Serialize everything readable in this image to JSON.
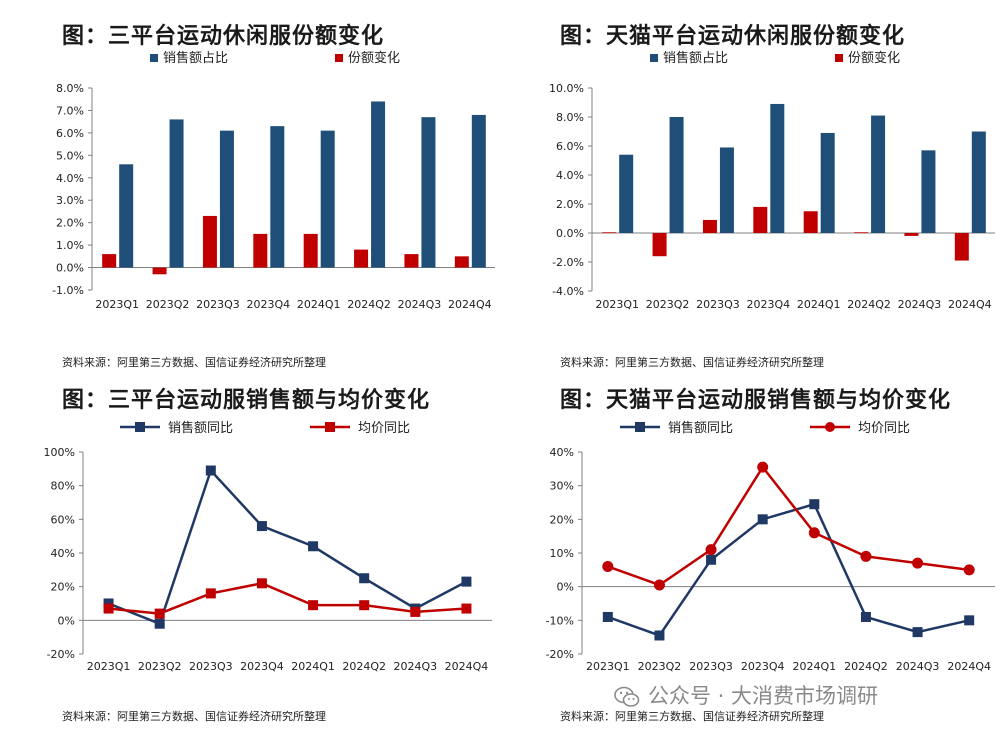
{
  "watermark": "公众号 · 大消费市场调研",
  "colors": {
    "navy": "#1f4e79",
    "red": "#c00000"
  },
  "charts": [
    {
      "title": "图：三平台运动休闲服份额变化",
      "source": "资料来源：阿里第三方数据、国信证券经济研究所整理",
      "chart_data": {
        "type": "bar",
        "categories": [
          "2023Q1",
          "2023Q2",
          "2023Q3",
          "2023Q4",
          "2024Q1",
          "2024Q2",
          "2024Q3",
          "2024Q4"
        ],
        "series": [
          {
            "name": "销售额占比",
            "color": "#1f4e79",
            "values": [
              4.6,
              6.6,
              6.1,
              6.3,
              6.1,
              7.4,
              6.7,
              6.8
            ]
          },
          {
            "name": "份额变化",
            "color": "#c00000",
            "values": [
              0.6,
              -0.3,
              2.3,
              1.5,
              1.5,
              0.8,
              0.6,
              0.5
            ]
          }
        ],
        "ylim": [
          -1.0,
          8.0
        ],
        "yticks": [
          "8.0%",
          "7.0%",
          "6.0%",
          "5.0%",
          "4.0%",
          "3.0%",
          "2.0%",
          "1.0%",
          "0.0%",
          "-1.0%"
        ],
        "ytick_values": [
          8,
          7,
          6,
          5,
          4,
          3,
          2,
          1,
          0,
          -1
        ]
      }
    },
    {
      "title": "图：天猫平台运动休闲服份额变化",
      "source": "资料来源：阿里第三方数据、国信证券经济研究所整理",
      "chart_data": {
        "type": "bar",
        "categories": [
          "2023Q1",
          "2023Q2",
          "2023Q3",
          "2023Q4",
          "2024Q1",
          "2024Q2",
          "2024Q3",
          "2024Q4"
        ],
        "series": [
          {
            "name": "销售额占比",
            "color": "#1f4e79",
            "values": [
              5.4,
              8.0,
              5.9,
              8.9,
              6.9,
              8.1,
              5.7,
              7.0
            ]
          },
          {
            "name": "份额变化",
            "color": "#c00000",
            "values": [
              0.05,
              -1.6,
              0.9,
              1.8,
              1.5,
              0.05,
              -0.2,
              -1.9
            ]
          }
        ],
        "ylim": [
          -4.0,
          10.0
        ],
        "yticks": [
          "10.0%",
          "8.0%",
          "6.0%",
          "4.0%",
          "2.0%",
          "0.0%",
          "-2.0%",
          "-4.0%"
        ],
        "ytick_values": [
          10,
          8,
          6,
          4,
          2,
          0,
          -2,
          -4
        ]
      }
    },
    {
      "title": "图：三平台运动服销售额与均价变化",
      "source": "资料来源：阿里第三方数据、国信证券经济研究所整理",
      "chart_data": {
        "type": "line",
        "categories": [
          "2023Q1",
          "2023Q2",
          "2023Q3",
          "2023Q4",
          "2024Q1",
          "2024Q2",
          "2024Q3",
          "2024Q4"
        ],
        "series": [
          {
            "name": "销售额同比",
            "color": "#1f3864",
            "marker": "square",
            "values": [
              10,
              -2,
              89,
              56,
              44,
              25,
              7,
              23
            ]
          },
          {
            "name": "均价同比",
            "color": "#c00000",
            "marker": "square",
            "values": [
              7,
              4,
              16,
              22,
              9,
              9,
              5,
              7
            ]
          }
        ],
        "ylim": [
          -20,
          100
        ],
        "yticks": [
          "100%",
          "80%",
          "60%",
          "40%",
          "20%",
          "0%",
          "-20%"
        ],
        "ytick_values": [
          100,
          80,
          60,
          40,
          20,
          0,
          -20
        ]
      }
    },
    {
      "title": "图：天猫平台运动服销售额与均价变化",
      "source": "资料来源：阿里第三方数据、国信证券经济研究所整理",
      "chart_data": {
        "type": "line",
        "categories": [
          "2023Q1",
          "2023Q2",
          "2023Q3",
          "2023Q4",
          "2024Q1",
          "2024Q2",
          "2024Q3",
          "2024Q4"
        ],
        "series": [
          {
            "name": "销售额同比",
            "color": "#1f3864",
            "marker": "square",
            "values": [
              -9,
              -14.5,
              8,
              20,
              24.5,
              -9,
              -13.5,
              -10
            ]
          },
          {
            "name": "均价同比",
            "color": "#c00000",
            "marker": "circle",
            "values": [
              6,
              0.5,
              11,
              35.5,
              16,
              9,
              7,
              5
            ]
          }
        ],
        "ylim": [
          -20,
          40
        ],
        "yticks": [
          "40%",
          "30%",
          "20%",
          "10%",
          "0%",
          "-10%",
          "-20%"
        ],
        "ytick_values": [
          40,
          30,
          20,
          10,
          0,
          -10,
          -20
        ]
      }
    }
  ]
}
